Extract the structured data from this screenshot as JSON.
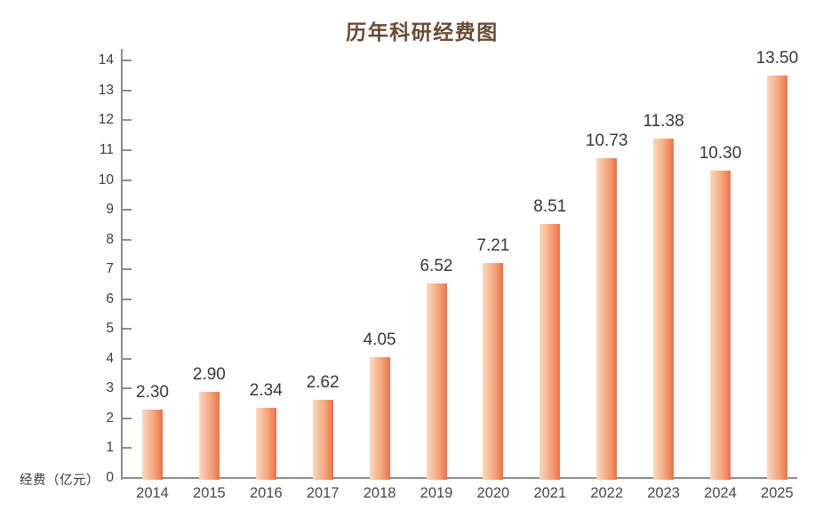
{
  "chart_data": {
    "type": "bar",
    "title": "历年科研经费图",
    "ylabel": "经费（亿元）",
    "xlabel": "",
    "categories": [
      "2014",
      "2015",
      "2016",
      "2017",
      "2018",
      "2019",
      "2020",
      "2021",
      "2022",
      "2023",
      "2024",
      "2025"
    ],
    "values": [
      2.3,
      2.9,
      2.34,
      2.62,
      4.05,
      6.52,
      7.21,
      8.51,
      10.73,
      11.38,
      10.3,
      13.5
    ],
    "value_labels": [
      "2.30",
      "2.90",
      "2.34",
      "2.62",
      "4.05",
      "6.52",
      "7.21",
      "8.51",
      "10.73",
      "11.38",
      "10.30",
      "13.50"
    ],
    "ylim": [
      0,
      14
    ],
    "ytick_step": 1,
    "ytick_labels": [
      "0",
      "1",
      "2",
      "3",
      "4",
      "5",
      "6",
      "7",
      "8",
      "9",
      "10",
      "11",
      "12",
      "13",
      "14"
    ],
    "grid": false,
    "legend": "none",
    "colors": {
      "background": "#ffffff",
      "title": "#6b4a33",
      "axis": "#8c8c8c",
      "ytick_label": "#3c3c3c",
      "xtick_label": "#474747",
      "value_label": "#383838",
      "bar_gradient_left": "#fcd8c0",
      "bar_gradient_mid": "#f5a87f",
      "bar_gradient_right": "#ec7048"
    }
  }
}
